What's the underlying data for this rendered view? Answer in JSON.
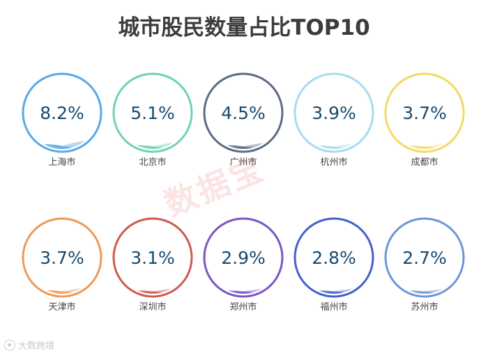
{
  "chart_data": {
    "type": "gauge-bubbles",
    "title": "城市股民数量占比TOP10",
    "unit": "%",
    "items": [
      {
        "city": "上海市",
        "value": 8.2,
        "label": "8.2%",
        "color": "#5aa9e6"
      },
      {
        "city": "北京市",
        "value": 5.1,
        "label": "5.1%",
        "color": "#6fd3ae"
      },
      {
        "city": "广州市",
        "value": 4.5,
        "label": "4.5%",
        "color": "#5c6a86"
      },
      {
        "city": "杭州市",
        "value": 3.9,
        "label": "3.9%",
        "color": "#a8dbf0"
      },
      {
        "city": "成都市",
        "value": 3.7,
        "label": "3.7%",
        "color": "#f3d965"
      },
      {
        "city": "天津市",
        "value": 3.7,
        "label": "3.7%",
        "color": "#ee9a56"
      },
      {
        "city": "深圳市",
        "value": 3.1,
        "label": "3.1%",
        "color": "#cf5a4f"
      },
      {
        "city": "郑州市",
        "value": 2.9,
        "label": "2.9%",
        "color": "#7a55c6"
      },
      {
        "city": "福州市",
        "value": 2.8,
        "label": "2.8%",
        "color": "#4361c8"
      },
      {
        "city": "苏州市",
        "value": 2.7,
        "label": "2.7%",
        "color": "#6d96d8"
      }
    ],
    "value_color": "#174a6e"
  },
  "watermark": "数据宝",
  "footer": {
    "source": "大数跨境"
  }
}
